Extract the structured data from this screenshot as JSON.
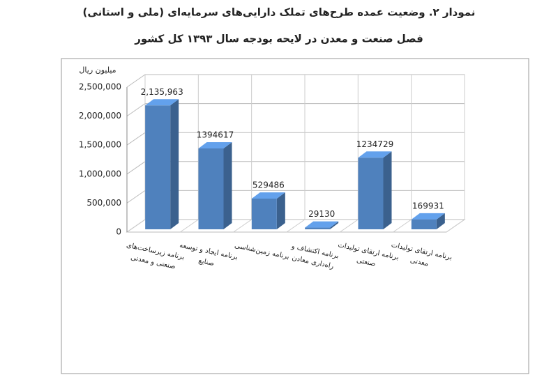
{
  "chart_data": {
    "type": "bar3d",
    "title": "نمودار ۲. وضعیت عمده طرح‌های تملک دارایی‌های سرمایه‌ای (ملی و استانی)",
    "subtitle": "فصل صنعت و معدن در لایحه بودجه سال ۱۳۹۳ کل کشور",
    "y_label": "میلیون ریال",
    "categories": [
      "برنامه زیرساخت‌های صنعتی و معدنی",
      "برنامه ایجاد و توسعه صنایع",
      "برنامه زمین‌شناسی",
      "برنامه اکتشاف و راه‌داری معادن",
      "برنامه ارتقای تولیدات صنعتی",
      "برنامه ارتقای تولیدات معدنی"
    ],
    "values": [
      2135963,
      1394617,
      529486,
      29130,
      1234729,
      169931
    ],
    "value_labels": [
      "2,135,963",
      "1394617",
      "529486",
      "29130",
      "1234729",
      "169931"
    ],
    "color": "#4f81bd",
    "ylim": [
      0,
      2500000
    ],
    "yticks": [
      0,
      {
        "value": 500000,
        "label": "500,000"
      },
      {
        "value": 1000000,
        "label": "1,000,000"
      },
      {
        "value": 1500000,
        "label": "1,500,000"
      },
      {
        "value": 2000000,
        "label": "2,000,000"
      },
      {
        "value": 2500000,
        "label": "2,500,000"
      }
    ],
    "grid": true
  }
}
